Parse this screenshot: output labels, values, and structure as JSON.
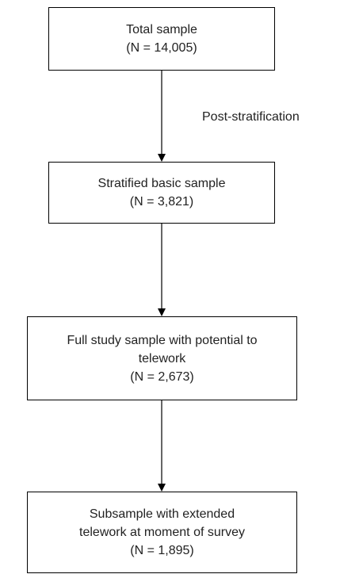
{
  "flowchart": {
    "boxes": [
      {
        "lines": [
          "Total sample",
          "(N = 14,005)"
        ]
      },
      {
        "lines": [
          "Stratified basic sample",
          "(N = 3,821)"
        ]
      },
      {
        "lines": [
          "Full study sample with potential to",
          "telework",
          "(N = 2,673)"
        ]
      },
      {
        "lines": [
          "Subsample with extended",
          "telework at moment of survey",
          "(N = 1,895)"
        ]
      }
    ],
    "edge_labels": [
      "Post-stratification"
    ]
  }
}
